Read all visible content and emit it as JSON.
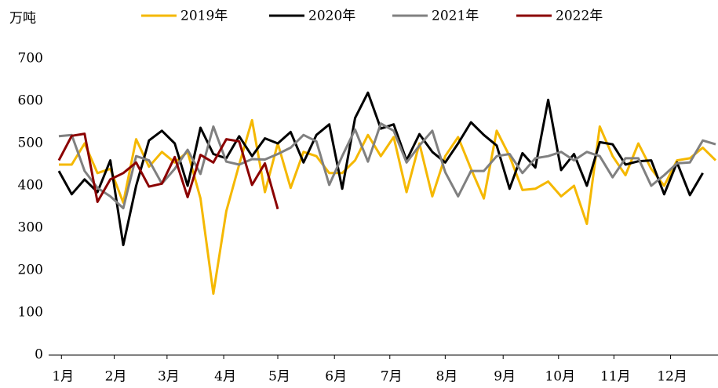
{
  "chart_data": {
    "type": "line",
    "y_label": "万吨",
    "x": [
      1,
      2,
      3,
      4,
      5,
      6,
      7,
      8,
      9,
      10,
      11,
      12,
      13,
      14,
      15,
      16,
      17,
      18,
      19,
      20,
      21,
      22,
      23,
      24,
      25,
      26,
      27,
      28,
      29,
      30,
      31,
      32,
      33,
      34,
      35,
      36,
      37,
      38,
      39,
      40,
      41,
      42,
      43,
      44,
      45,
      46,
      47,
      48,
      49,
      50,
      51,
      52
    ],
    "xlim": [
      1,
      52
    ],
    "xticks": [
      {
        "value": 1.2,
        "label": "1月"
      },
      {
        "value": 5.3,
        "label": "2月"
      },
      {
        "value": 9.4,
        "label": "3月"
      },
      {
        "value": 13.8,
        "label": "4月"
      },
      {
        "value": 18,
        "label": "5月"
      },
      {
        "value": 22.4,
        "label": "6月"
      },
      {
        "value": 26.7,
        "label": "7月"
      },
      {
        "value": 31,
        "label": "8月"
      },
      {
        "value": 35.5,
        "label": "9月"
      },
      {
        "value": 39.8,
        "label": "10月"
      },
      {
        "value": 44.1,
        "label": "11月"
      },
      {
        "value": 48.5,
        "label": "12月"
      }
    ],
    "ylim": [
      0,
      700
    ],
    "yticks": [
      0,
      100,
      200,
      300,
      400,
      500,
      600,
      700
    ],
    "series": [
      {
        "name": "2019年",
        "color": "#f5b800",
        "values": [
          450,
          450,
          500,
          430,
          440,
          360,
          510,
          445,
          480,
          455,
          480,
          370,
          145,
          340,
          450,
          555,
          385,
          500,
          395,
          480,
          470,
          430,
          430,
          460,
          520,
          470,
          515,
          385,
          500,
          375,
          470,
          515,
          440,
          370,
          530,
          470,
          390,
          393,
          410,
          375,
          400,
          310,
          540,
          470,
          425,
          500,
          440,
          400,
          460,
          465,
          490,
          460
        ]
      },
      {
        "name": "2020年",
        "color": "#000000",
        "values": [
          435,
          380,
          415,
          385,
          460,
          260,
          400,
          507,
          530,
          500,
          400,
          537,
          475,
          465,
          517,
          470,
          512,
          500,
          527,
          455,
          520,
          545,
          393,
          560,
          620,
          535,
          545,
          460,
          522,
          480,
          455,
          500,
          550,
          520,
          495,
          393,
          477,
          443,
          603,
          437,
          475,
          400,
          503,
          498,
          450,
          458,
          460,
          380,
          455,
          378,
          430,
          null
        ]
      },
      {
        "name": "2021年",
        "color": "#808080",
        "values": [
          517,
          520,
          435,
          395,
          375,
          347,
          470,
          460,
          405,
          440,
          485,
          428,
          540,
          457,
          450,
          463,
          462,
          475,
          490,
          520,
          505,
          402,
          470,
          533,
          457,
          547,
          530,
          455,
          495,
          530,
          432,
          375,
          435,
          435,
          470,
          475,
          430,
          465,
          470,
          480,
          460,
          480,
          470,
          420,
          465,
          465,
          400,
          425,
          453,
          455,
          507,
          498
        ]
      },
      {
        "name": "2022年",
        "color": "#8b0000",
        "values": [
          460,
          518,
          523,
          362,
          415,
          430,
          455,
          398,
          405,
          468,
          373,
          473,
          455,
          510,
          505,
          402,
          453,
          345,
          null,
          null,
          null,
          null,
          null,
          null,
          null,
          null,
          null,
          null,
          null,
          null,
          null,
          null,
          null,
          null,
          null,
          null,
          null,
          null,
          null,
          null,
          null,
          null,
          null,
          null,
          null,
          null,
          null,
          null,
          null,
          null,
          null,
          null
        ]
      }
    ]
  }
}
